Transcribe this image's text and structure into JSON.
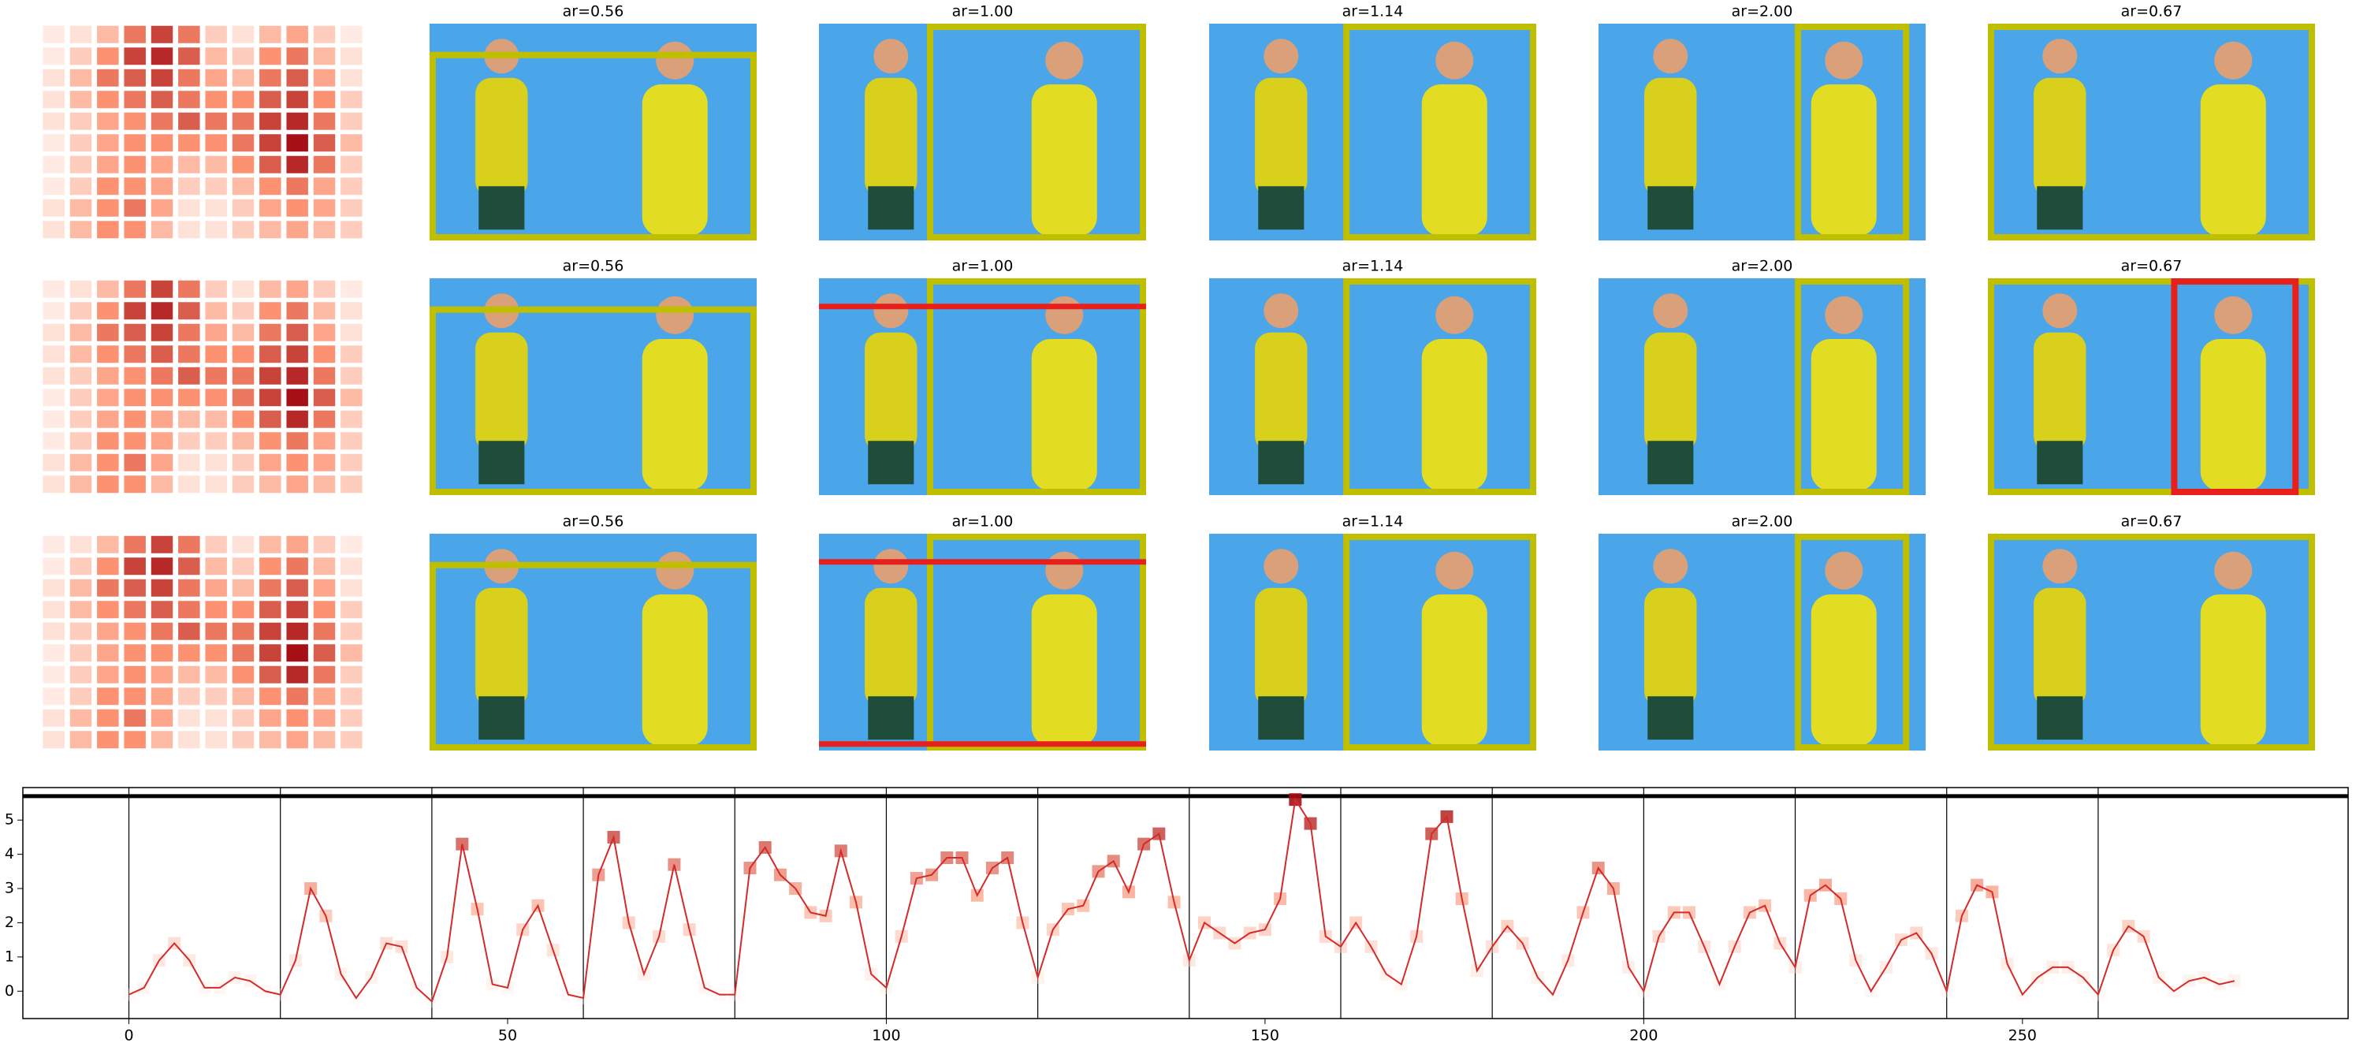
{
  "grid": {
    "rows": [
      {
        "heatmap": [
          [
            0.05,
            0.1,
            0.3,
            0.6,
            0.8,
            0.6,
            0.2,
            0.1,
            0.3,
            0.4,
            0.2,
            0.05
          ],
          [
            0.05,
            0.2,
            0.5,
            0.8,
            0.9,
            0.7,
            0.3,
            0.2,
            0.5,
            0.6,
            0.3,
            0.1
          ],
          [
            0.1,
            0.3,
            0.6,
            0.7,
            0.8,
            0.6,
            0.4,
            0.3,
            0.6,
            0.7,
            0.4,
            0.1
          ],
          [
            0.1,
            0.3,
            0.5,
            0.6,
            0.7,
            0.6,
            0.5,
            0.5,
            0.7,
            0.8,
            0.5,
            0.2
          ],
          [
            0.1,
            0.2,
            0.4,
            0.5,
            0.6,
            0.7,
            0.6,
            0.6,
            0.8,
            0.9,
            0.6,
            0.2
          ],
          [
            0.05,
            0.2,
            0.4,
            0.5,
            0.5,
            0.5,
            0.5,
            0.6,
            0.8,
            1,
            0.7,
            0.3
          ],
          [
            0.05,
            0.2,
            0.4,
            0.5,
            0.4,
            0.3,
            0.3,
            0.5,
            0.7,
            0.9,
            0.6,
            0.2
          ],
          [
            0.05,
            0.2,
            0.5,
            0.5,
            0.4,
            0.2,
            0.2,
            0.3,
            0.5,
            0.6,
            0.4,
            0.2
          ],
          [
            0.1,
            0.3,
            0.5,
            0.6,
            0.4,
            0.1,
            0.1,
            0.2,
            0.4,
            0.5,
            0.4,
            0.2
          ],
          [
            0.1,
            0.3,
            0.5,
            0.5,
            0.3,
            0.1,
            0.1,
            0.2,
            0.3,
            0.4,
            0.3,
            0.2
          ]
        ],
        "crops": [
          "ar=0.56",
          "ar=1.00",
          "ar=1.14",
          "ar=2.00",
          "ar=0.67"
        ]
      },
      {
        "heatmap": [
          [
            0.05,
            0.1,
            0.3,
            0.6,
            0.8,
            0.6,
            0.2,
            0.1,
            0.3,
            0.4,
            0.2,
            0.05
          ],
          [
            0.05,
            0.2,
            0.5,
            0.8,
            0.9,
            0.7,
            0.3,
            0.2,
            0.5,
            0.6,
            0.3,
            0.1
          ],
          [
            0.1,
            0.3,
            0.6,
            0.7,
            0.8,
            0.6,
            0.4,
            0.3,
            0.6,
            0.7,
            0.4,
            0.1
          ],
          [
            0.1,
            0.3,
            0.5,
            0.6,
            0.7,
            0.6,
            0.5,
            0.5,
            0.7,
            0.8,
            0.5,
            0.2
          ],
          [
            0.1,
            0.2,
            0.4,
            0.5,
            0.6,
            0.7,
            0.6,
            0.6,
            0.8,
            0.9,
            0.6,
            0.2
          ],
          [
            0.05,
            0.2,
            0.4,
            0.5,
            0.5,
            0.5,
            0.5,
            0.6,
            0.8,
            1,
            0.7,
            0.3
          ],
          [
            0.05,
            0.2,
            0.4,
            0.5,
            0.4,
            0.3,
            0.3,
            0.5,
            0.7,
            0.9,
            0.6,
            0.2
          ],
          [
            0.05,
            0.2,
            0.5,
            0.5,
            0.4,
            0.2,
            0.2,
            0.3,
            0.5,
            0.6,
            0.4,
            0.2
          ],
          [
            0.1,
            0.3,
            0.5,
            0.6,
            0.4,
            0.1,
            0.1,
            0.2,
            0.4,
            0.5,
            0.4,
            0.2
          ],
          [
            0.1,
            0.3,
            0.5,
            0.5,
            0.3,
            0.1,
            0.1,
            0.2,
            0.3,
            0.4,
            0.3,
            0.2
          ]
        ],
        "crops": [
          "ar=0.56",
          "ar=1.00",
          "ar=1.14",
          "ar=2.00",
          "ar=0.67"
        ]
      },
      {
        "heatmap": [
          [
            0.05,
            0.1,
            0.3,
            0.6,
            0.8,
            0.6,
            0.2,
            0.1,
            0.3,
            0.4,
            0.2,
            0.05
          ],
          [
            0.05,
            0.2,
            0.5,
            0.8,
            0.9,
            0.7,
            0.3,
            0.2,
            0.5,
            0.6,
            0.3,
            0.1
          ],
          [
            0.1,
            0.3,
            0.6,
            0.7,
            0.8,
            0.6,
            0.4,
            0.3,
            0.6,
            0.7,
            0.4,
            0.1
          ],
          [
            0.1,
            0.3,
            0.5,
            0.6,
            0.7,
            0.6,
            0.5,
            0.5,
            0.7,
            0.8,
            0.5,
            0.2
          ],
          [
            0.1,
            0.2,
            0.4,
            0.5,
            0.6,
            0.7,
            0.6,
            0.6,
            0.8,
            0.9,
            0.6,
            0.2
          ],
          [
            0.05,
            0.2,
            0.4,
            0.5,
            0.5,
            0.5,
            0.5,
            0.6,
            0.8,
            1,
            0.7,
            0.3
          ],
          [
            0.05,
            0.2,
            0.4,
            0.5,
            0.4,
            0.3,
            0.3,
            0.5,
            0.7,
            0.9,
            0.6,
            0.2
          ],
          [
            0.05,
            0.2,
            0.5,
            0.5,
            0.4,
            0.2,
            0.2,
            0.3,
            0.5,
            0.6,
            0.4,
            0.2
          ],
          [
            0.1,
            0.3,
            0.5,
            0.6,
            0.4,
            0.1,
            0.1,
            0.2,
            0.4,
            0.5,
            0.4,
            0.2
          ],
          [
            0.1,
            0.3,
            0.5,
            0.5,
            0.3,
            0.1,
            0.1,
            0.2,
            0.3,
            0.4,
            0.3,
            0.2
          ]
        ],
        "crops": [
          "ar=0.56",
          "ar=1.00",
          "ar=1.14",
          "ar=2.00",
          "ar=0.67"
        ]
      }
    ]
  },
  "chart_data": {
    "type": "line",
    "color": "#d42a2a",
    "x": [
      0,
      2,
      4,
      6,
      8,
      10,
      12,
      14,
      16,
      18,
      20,
      22,
      24,
      26,
      28,
      30,
      32,
      34,
      36,
      38,
      40,
      42,
      44,
      46,
      48,
      50,
      52,
      54,
      56,
      58,
      60,
      62,
      64,
      66,
      68,
      70,
      72,
      74,
      76,
      78,
      80,
      82,
      84,
      86,
      88,
      90,
      92,
      94,
      96,
      98,
      100,
      102,
      104,
      106,
      108,
      110,
      112,
      114,
      116,
      118,
      120,
      122,
      124,
      126,
      128,
      130,
      132,
      134,
      136,
      138,
      140,
      142,
      144,
      146,
      148,
      150,
      152,
      154,
      156,
      158,
      160,
      162,
      164,
      166,
      168,
      170,
      172,
      174,
      176,
      178,
      180,
      182,
      184,
      186,
      188,
      190,
      192,
      194,
      196,
      198,
      200,
      202,
      204,
      206,
      208,
      210,
      212,
      214,
      216,
      218,
      220,
      222,
      224,
      226,
      228,
      230,
      232,
      234,
      236,
      238,
      240,
      242,
      244,
      246,
      248,
      250,
      252,
      254,
      256,
      258,
      260,
      262,
      264,
      266,
      268,
      270,
      272,
      274,
      276,
      278
    ],
    "values": [
      -0.1,
      0.1,
      0.9,
      1.4,
      0.9,
      0.1,
      0.1,
      0.4,
      0.3,
      0,
      -0.1,
      0.9,
      3.0,
      2.2,
      0.5,
      -0.2,
      0.4,
      1.4,
      1.3,
      0.1,
      -0.3,
      1.0,
      4.3,
      2.4,
      0.2,
      0.1,
      1.8,
      2.5,
      1.2,
      -0.1,
      -0.2,
      3.4,
      4.5,
      2.0,
      0.5,
      1.6,
      3.7,
      1.8,
      0.1,
      -0.1,
      -0.1,
      3.6,
      4.2,
      3.4,
      3.0,
      2.3,
      2.2,
      4.1,
      2.6,
      0.5,
      0.1,
      1.6,
      3.3,
      3.4,
      3.9,
      3.9,
      2.8,
      3.6,
      3.9,
      2.0,
      0.4,
      1.8,
      2.4,
      2.5,
      3.5,
      3.8,
      2.9,
      4.3,
      4.6,
      2.6,
      0.9,
      2.0,
      1.7,
      1.4,
      1.7,
      1.8,
      2.7,
      5.6,
      4.9,
      1.6,
      1.3,
      2.0,
      1.3,
      0.5,
      0.2,
      1.6,
      4.6,
      5.1,
      2.7,
      0.6,
      1.3,
      1.9,
      1.4,
      0.4,
      -0.1,
      0.9,
      2.3,
      3.6,
      3.0,
      0.7,
      0.0,
      1.6,
      2.3,
      2.3,
      1.3,
      0.2,
      1.3,
      2.3,
      2.5,
      1.4,
      0.7,
      2.8,
      3.1,
      2.7,
      0.9,
      0.0,
      0.7,
      1.5,
      1.7,
      1.1,
      0.0,
      2.2,
      3.1,
      2.9,
      0.8,
      -0.1,
      0.4,
      0.7,
      0.7,
      0.4,
      -0.1,
      1.2,
      1.9,
      1.6,
      0.4,
      0.0,
      0.3,
      0.4,
      0.2,
      0.3
    ],
    "xlim": [
      -14,
      293
    ],
    "ylim": [
      -0.8,
      5.95
    ],
    "xticks": [
      0,
      50,
      100,
      150,
      200,
      250
    ],
    "yticks": [
      0,
      1,
      2,
      3,
      4,
      5
    ],
    "vlines": [
      0,
      20,
      40,
      60,
      80,
      100,
      120,
      140,
      160,
      180,
      200,
      220,
      240,
      260
    ],
    "hline": 5.7
  }
}
